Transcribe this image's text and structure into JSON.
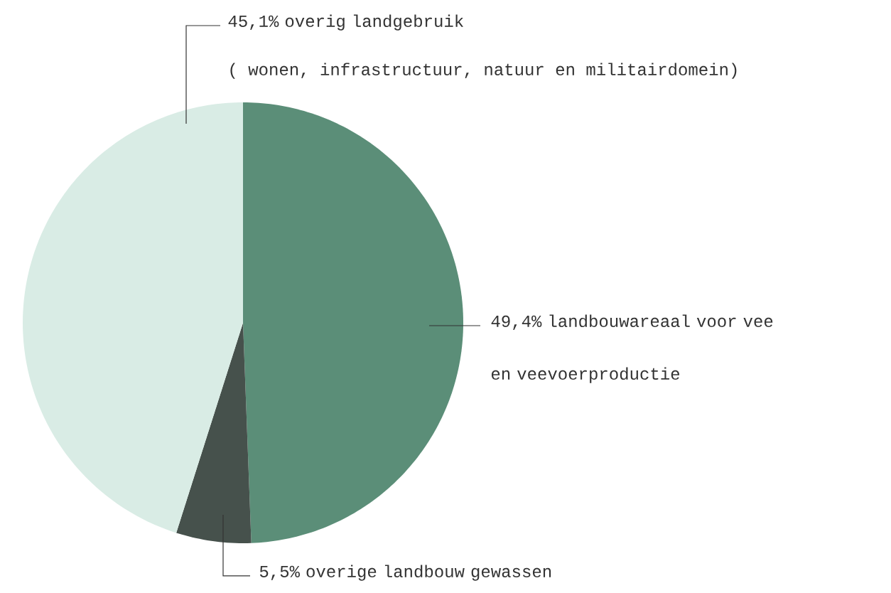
{
  "chart_data": {
    "type": "pie",
    "categories": [
      "landbouwareaal voor vee en veevoerproductie",
      "overige landbouw gewassen",
      "overig landgebruik"
    ],
    "values": [
      49.4,
      5.5,
      45.1
    ],
    "value_labels": [
      "49,4%",
      "5,5%",
      "45,1%"
    ],
    "colors": [
      "#5b8e78",
      "#46514c",
      "#d9ece5"
    ],
    "annotations": [
      "( wonen, infrastructuur, natuur en militairdomein)"
    ]
  }
}
